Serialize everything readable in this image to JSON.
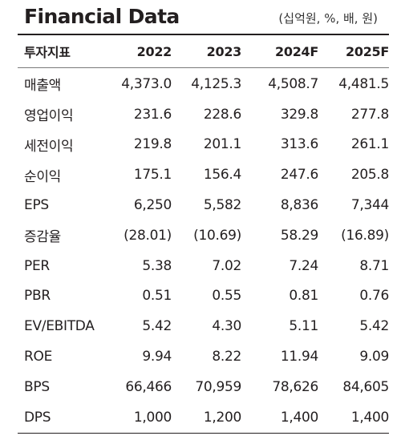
{
  "title": "Financial Data",
  "unit_note": "(십억원, %, 배, 원)",
  "table": {
    "headers": [
      "투자지표",
      "2022",
      "2023",
      "2024F",
      "2025F"
    ],
    "rows": [
      {
        "label": "매출액",
        "values": [
          "4,373.0",
          "4,125.3",
          "4,508.7",
          "4,481.5"
        ]
      },
      {
        "label": "영업이익",
        "values": [
          "231.6",
          "228.6",
          "329.8",
          "277.8"
        ]
      },
      {
        "label": "세전이익",
        "values": [
          "219.8",
          "201.1",
          "313.6",
          "261.1"
        ]
      },
      {
        "label": "순이익",
        "values": [
          "175.1",
          "156.4",
          "247.6",
          "205.8"
        ]
      },
      {
        "label": "EPS",
        "values": [
          "6,250",
          "5,582",
          "8,836",
          "7,344"
        ]
      },
      {
        "label": "증감율",
        "values": [
          "(28.01)",
          "(10.69)",
          "58.29",
          "(16.89)"
        ]
      },
      {
        "label": "PER",
        "values": [
          "5.38",
          "7.02",
          "7.24",
          "8.71"
        ]
      },
      {
        "label": "PBR",
        "values": [
          "0.51",
          "0.55",
          "0.81",
          "0.76"
        ]
      },
      {
        "label": "EV/EBITDA",
        "values": [
          "5.42",
          "4.30",
          "5.11",
          "5.42"
        ]
      },
      {
        "label": "ROE",
        "values": [
          "9.94",
          "8.22",
          "11.94",
          "9.09"
        ]
      },
      {
        "label": "BPS",
        "values": [
          "66,466",
          "70,959",
          "78,626",
          "84,605"
        ]
      },
      {
        "label": "DPS",
        "values": [
          "1,000",
          "1,200",
          "1,400",
          "1,400"
        ]
      }
    ]
  }
}
